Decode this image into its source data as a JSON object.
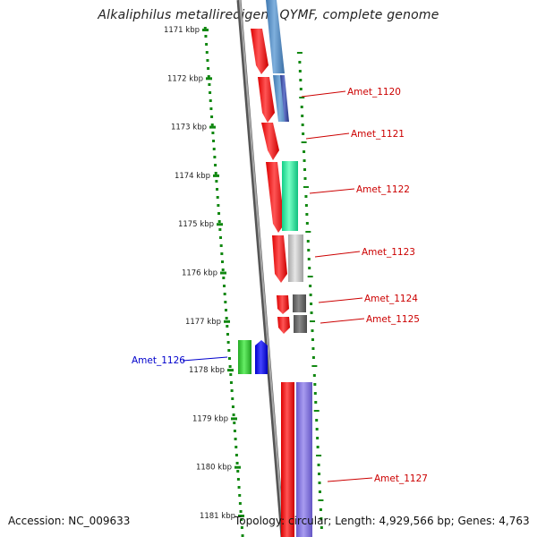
{
  "title": "Alkaliphilus metalliredigens QYMF, complete genome",
  "footer": {
    "accession": "Accession: NC_009633",
    "topology": "Topology: circular; Length: 4,929,566 bp; Genes: 4,763"
  },
  "ruler_ticks": [
    "1171 kbp",
    "1172 kbp",
    "1173 kbp",
    "1174 kbp",
    "1175 kbp",
    "1176 kbp",
    "1177 kbp",
    "1178 kbp",
    "1179 kbp",
    "1180 kbp",
    "1181 kbp"
  ],
  "gene_labels": [
    {
      "id": "Amet_1120",
      "strand": "forward"
    },
    {
      "id": "Amet_1121",
      "strand": "forward"
    },
    {
      "id": "Amet_1122",
      "strand": "forward"
    },
    {
      "id": "Amet_1123",
      "strand": "forward"
    },
    {
      "id": "Amet_1124",
      "strand": "forward"
    },
    {
      "id": "Amet_1125",
      "strand": "forward"
    },
    {
      "id": "Amet_1126",
      "strand": "reverse"
    },
    {
      "id": "Amet_1127",
      "strand": "forward"
    }
  ],
  "colors": {
    "forward_label": "#cc0000",
    "reverse_label": "#0000cc",
    "cds": "#ee0000",
    "ruler": "#118811",
    "backbone": "#777777"
  }
}
